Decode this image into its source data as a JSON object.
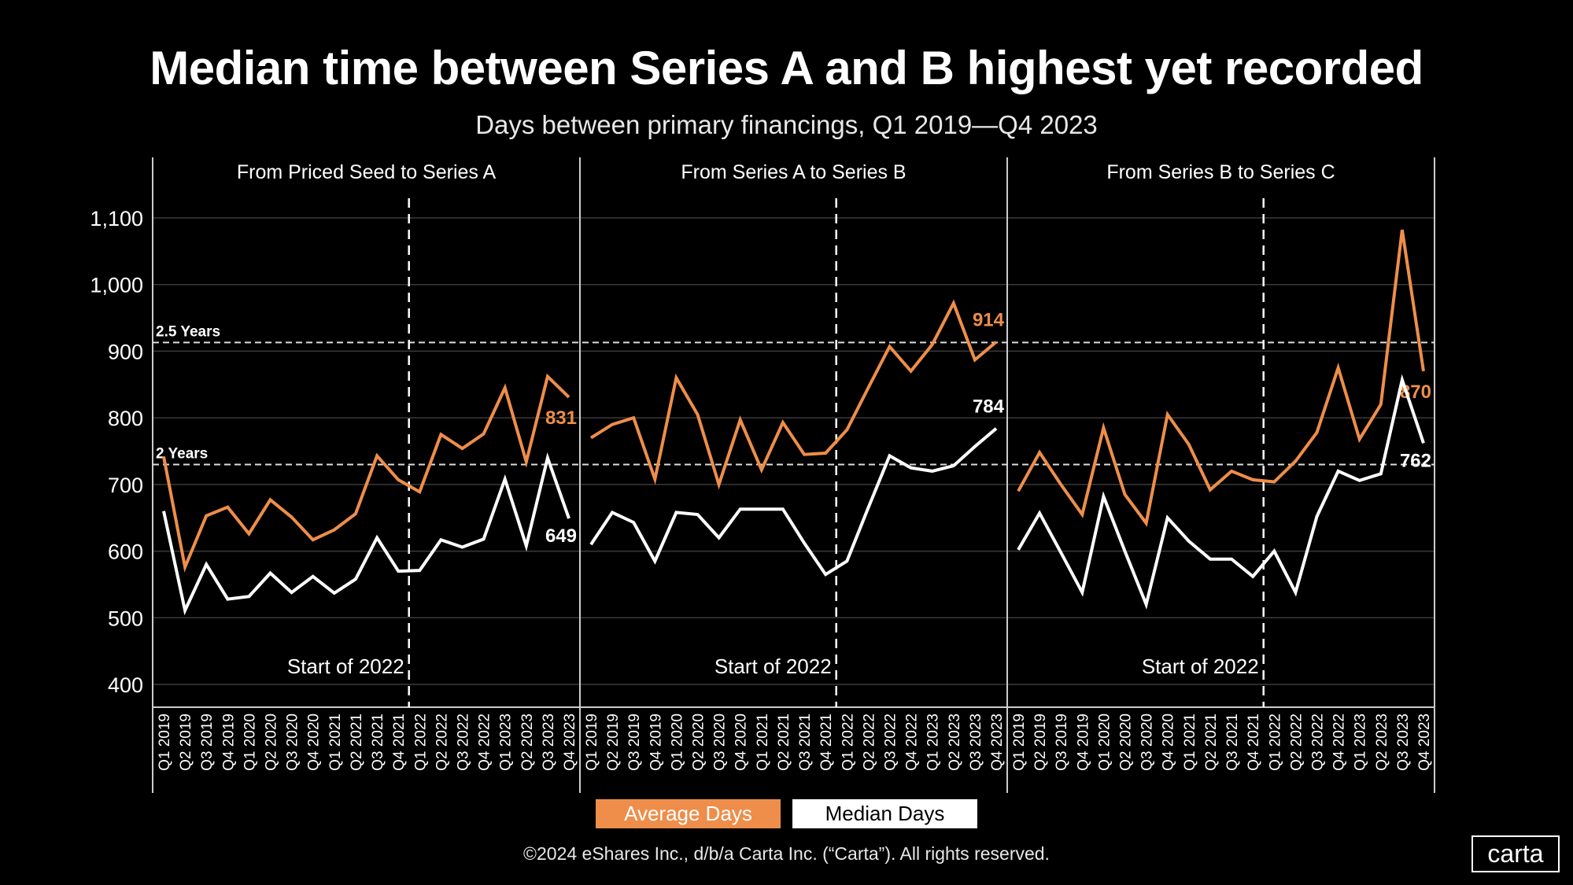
{
  "title": "Median time between Series A and B highest yet recorded",
  "subtitle": "Days between primary financings, Q1 2019—Q4 2023",
  "legend": {
    "average": "Average Days",
    "median": "Median Days"
  },
  "footer": "©2024 eShares Inc., d/b/a Carta Inc. (“Carta”). All rights reserved.",
  "logo": "carta",
  "colors": {
    "average": "#EE8E4A",
    "median": "#FFFFFF",
    "grid": "#3a3a3a"
  },
  "chart_data": {
    "type": "line",
    "ylim": [
      370,
      1150
    ],
    "yticks": [
      400,
      500,
      600,
      700,
      800,
      900,
      1000,
      1100
    ],
    "ytick_labels": [
      "400",
      "500",
      "600",
      "700",
      "800",
      "900",
      "1,000",
      "1,100"
    ],
    "x": [
      "Q1 2019",
      "Q2 2019",
      "Q3 2019",
      "Q4 2019",
      "Q1 2020",
      "Q2 2020",
      "Q3 2020",
      "Q4 2020",
      "Q1 2021",
      "Q2 2021",
      "Q3 2021",
      "Q4 2021",
      "Q1 2022",
      "Q2 2022",
      "Q3 2022",
      "Q4 2022",
      "Q1 2023",
      "Q2 2023",
      "Q3 2023",
      "Q4 2023"
    ],
    "reference_lines": [
      {
        "label": "2.5 Years",
        "value": 913
      },
      {
        "label": "2 Years",
        "value": 730
      }
    ],
    "vertical_marker": {
      "label": "Start of 2022",
      "between": [
        "Q4 2021",
        "Q1 2022"
      ]
    },
    "panels": [
      {
        "title": "From Priced Seed to Series A",
        "series": [
          {
            "name": "Average Days",
            "values": [
              742,
              576,
              653,
              666,
              626,
              677,
              651,
              617,
              632,
              656,
              743,
              707,
              689,
              775,
              754,
              776,
              845,
              734,
              862,
              831
            ],
            "end_label": "831"
          },
          {
            "name": "Median Days",
            "values": [
              660,
              511,
              580,
              528,
              532,
              567,
              538,
              562,
              537,
              558,
              620,
              570,
              571,
              617,
              606,
              618,
              708,
              608,
              740,
              649
            ],
            "end_label": "649"
          }
        ]
      },
      {
        "title": "From Series A to Series B",
        "series": [
          {
            "name": "Average Days",
            "values": [
              770,
              790,
              800,
              708,
              860,
              805,
              700,
              797,
              722,
              793,
              745,
              747,
              782,
              845,
              907,
              870,
              910,
              972,
              887,
              914
            ],
            "end_label": "914"
          },
          {
            "name": "Median Days",
            "values": [
              610,
              658,
              643,
              585,
              658,
              655,
              620,
              663,
              663,
              663,
              612,
              565,
              585,
              665,
              743,
              725,
              720,
              728,
              757,
              784
            ],
            "end_label": "784"
          }
        ]
      },
      {
        "title": "From Series B to Series C",
        "series": [
          {
            "name": "Average Days",
            "values": [
              690,
              748,
              700,
              655,
              785,
              685,
              642,
              805,
              760,
              692,
              720,
              707,
              704,
              735,
              778,
              875,
              768,
              820,
              1082,
              870
            ],
            "end_label": "870"
          },
          {
            "name": "Median Days",
            "values": [
              602,
              657,
              598,
              538,
              682,
              600,
              520,
              650,
              615,
              588,
              588,
              562,
              600,
              538,
              652,
              720,
              706,
              716,
              857,
              762
            ],
            "end_label": "762"
          }
        ]
      }
    ]
  }
}
